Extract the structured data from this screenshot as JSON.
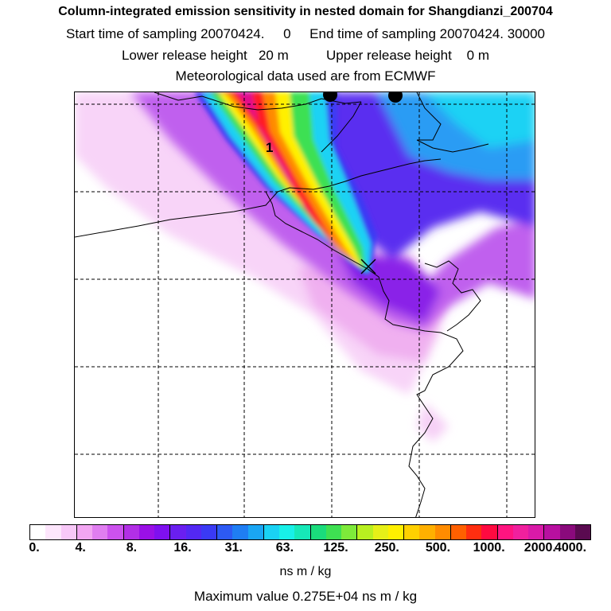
{
  "header": {
    "title": "Column-integrated emission sensitivity in nested domain for Shangdianzi_200704",
    "sampling_line": "Start time of sampling 20070424.     0     End time of sampling 20070424. 30000",
    "release_line": "Lower release height   20 m          Upper release height    0 m",
    "met_line": "Meteorological data used are from ECMWF"
  },
  "map": {
    "label_1": "1"
  },
  "colorbar": {
    "colors": [
      "#ffffff",
      "#fde6fc",
      "#f8c8f8",
      "#f2a6f2",
      "#e07ef0",
      "#cc52ee",
      "#b22fe6",
      "#9a10e6",
      "#7f10ef",
      "#6a1ff0",
      "#5328f3",
      "#3a3af4",
      "#2d5af4",
      "#1f7ef4",
      "#1aa6f4",
      "#1ad2f4",
      "#18f0e8",
      "#16e8b8",
      "#1adc7c",
      "#3ee052",
      "#7eea3a",
      "#b8f020",
      "#e6f018",
      "#fff000",
      "#ffd000",
      "#ffb000",
      "#ff8c00",
      "#ff6000",
      "#ff2e10",
      "#ff0a40",
      "#ff1480",
      "#f0209e",
      "#d91aa8",
      "#b810a0",
      "#8a0a7c",
      "#5a0a50"
    ],
    "ticks": [
      "0.",
      "4.",
      "8.",
      "16.",
      "31.",
      "63.",
      "125.",
      "250.",
      "500.",
      "1000.",
      "2000.",
      "4000."
    ],
    "unit": "ns m / kg",
    "max_label": "Maximum value  0.275E+04 ns m / kg"
  }
}
